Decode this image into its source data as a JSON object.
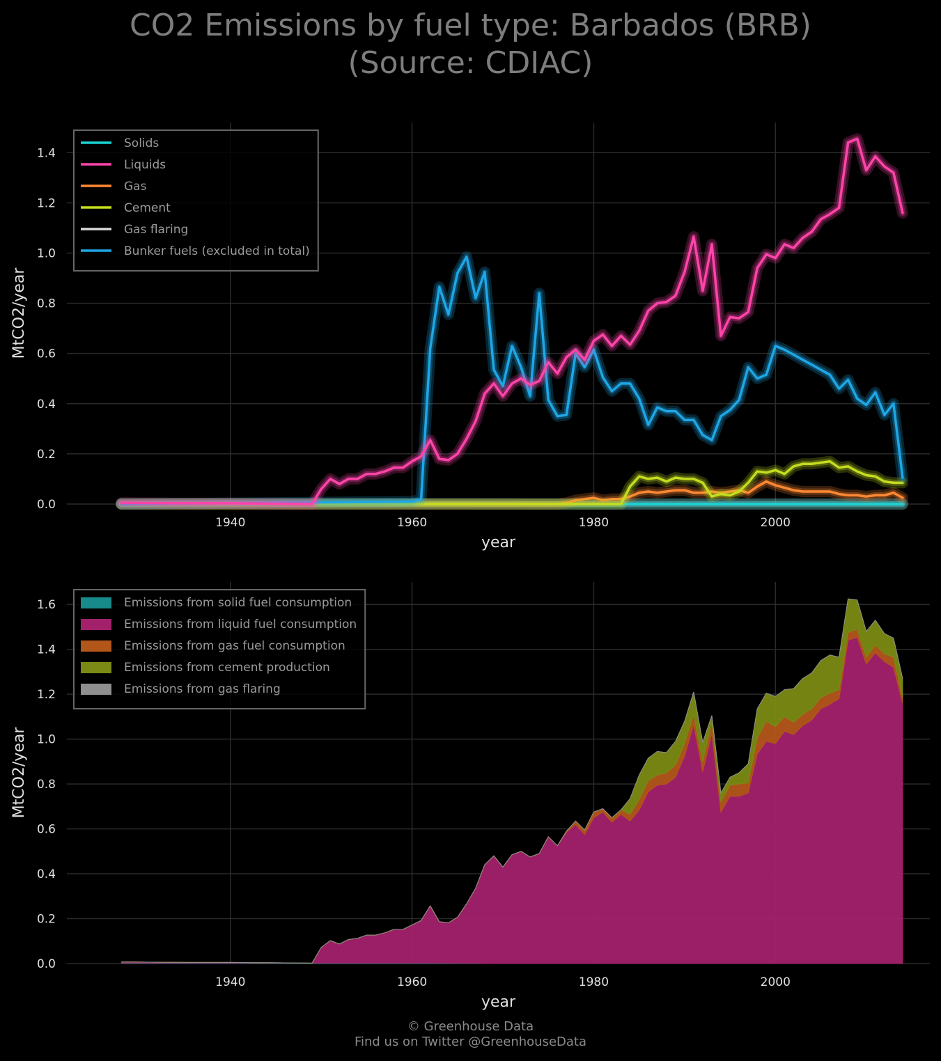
{
  "title": {
    "line1": "CO2 Emissions by fuel type: Barbados (BRB)",
    "line2": "(Source: CDIAC)"
  },
  "footer": {
    "line1": "© Greenhouse Data",
    "line2": "Find us on Twitter @GreenhouseData"
  },
  "chart_data": [
    {
      "type": "line",
      "xlabel": "year",
      "ylabel": "MtCO2/year",
      "xlim": [
        1922,
        2017
      ],
      "ylim": [
        0,
        1.52
      ],
      "xticks": [
        1940,
        1960,
        1980,
        2000
      ],
      "yticks": [
        0.0,
        0.2,
        0.4,
        0.6,
        0.8,
        1.0,
        1.2,
        1.4
      ],
      "grid": true,
      "legend_position": "top-left",
      "series": [
        {
          "name": "Solids",
          "color": "#1ad1d1",
          "x": [
            1928,
            1960,
            1970,
            1980,
            1990,
            2000,
            2010,
            2014
          ],
          "y": [
            0.002,
            0.002,
            0.001,
            0.0,
            0.0,
            0.0,
            0.0,
            0.0
          ]
        },
        {
          "name": "Liquids",
          "color": "#ff44aa",
          "x": [
            1928,
            1935,
            1940,
            1949,
            1950,
            1951,
            1952,
            1953,
            1954,
            1955,
            1956,
            1957,
            1958,
            1959,
            1960,
            1961,
            1962,
            1963,
            1964,
            1965,
            1966,
            1967,
            1968,
            1969,
            1970,
            1971,
            1972,
            1973,
            1974,
            1975,
            1976,
            1977,
            1978,
            1979,
            1980,
            1981,
            1982,
            1983,
            1984,
            1985,
            1986,
            1987,
            1988,
            1989,
            1990,
            1991,
            1992,
            1993,
            1994,
            1995,
            1996,
            1997,
            1998,
            1999,
            2000,
            2001,
            2002,
            2003,
            2004,
            2005,
            2006,
            2007,
            2008,
            2009,
            2010,
            2011,
            2012,
            2013,
            2014
          ],
          "y": [
            0.005,
            0.003,
            0.003,
            0.0,
            0.06,
            0.1,
            0.08,
            0.1,
            0.1,
            0.12,
            0.12,
            0.13,
            0.145,
            0.145,
            0.17,
            0.19,
            0.255,
            0.18,
            0.175,
            0.2,
            0.26,
            0.33,
            0.44,
            0.48,
            0.43,
            0.48,
            0.5,
            0.475,
            0.49,
            0.565,
            0.52,
            0.585,
            0.615,
            0.575,
            0.65,
            0.675,
            0.63,
            0.67,
            0.635,
            0.69,
            0.77,
            0.8,
            0.805,
            0.83,
            0.925,
            1.065,
            0.85,
            1.035,
            0.67,
            0.745,
            0.74,
            0.765,
            0.94,
            0.995,
            0.98,
            1.035,
            1.02,
            1.06,
            1.085,
            1.135,
            1.155,
            1.18,
            1.44,
            1.455,
            1.33,
            1.385,
            1.345,
            1.32,
            1.16
          ]
        },
        {
          "name": "Gas",
          "color": "#ff8833",
          "x": [
            1928,
            1976,
            1977,
            1978,
            1979,
            1980,
            1981,
            1982,
            1983,
            1984,
            1985,
            1986,
            1987,
            1988,
            1989,
            1990,
            1991,
            1992,
            1993,
            1994,
            1995,
            1996,
            1997,
            1998,
            1999,
            2000,
            2001,
            2002,
            2003,
            2004,
            2005,
            2006,
            2007,
            2008,
            2009,
            2010,
            2011,
            2012,
            2013,
            2014
          ],
          "y": [
            0.0,
            0.0,
            0.005,
            0.015,
            0.02,
            0.025,
            0.015,
            0.02,
            0.02,
            0.03,
            0.045,
            0.05,
            0.045,
            0.05,
            0.055,
            0.055,
            0.045,
            0.045,
            0.05,
            0.045,
            0.05,
            0.055,
            0.045,
            0.07,
            0.09,
            0.075,
            0.065,
            0.055,
            0.05,
            0.05,
            0.05,
            0.05,
            0.04,
            0.035,
            0.035,
            0.03,
            0.035,
            0.035,
            0.045,
            0.025
          ]
        },
        {
          "name": "Cement",
          "color": "#c5dd1f",
          "x": [
            1928,
            1983,
            1984,
            1985,
            1986,
            1987,
            1988,
            1989,
            1990,
            1991,
            1992,
            1993,
            1994,
            1995,
            1996,
            1997,
            1998,
            1999,
            2000,
            2001,
            2002,
            2003,
            2004,
            2005,
            2006,
            2007,
            2008,
            2009,
            2010,
            2011,
            2012,
            2013,
            2014
          ],
          "y": [
            0.0,
            0.0,
            0.07,
            0.11,
            0.1,
            0.105,
            0.09,
            0.105,
            0.1,
            0.1,
            0.085,
            0.03,
            0.04,
            0.035,
            0.05,
            0.085,
            0.13,
            0.125,
            0.135,
            0.12,
            0.15,
            0.16,
            0.16,
            0.165,
            0.17,
            0.145,
            0.15,
            0.13,
            0.115,
            0.11,
            0.09,
            0.085,
            0.085
          ]
        },
        {
          "name": "Gas flaring",
          "color": "#d9d9d9",
          "x": [
            1928,
            2014
          ],
          "y": [
            0.0,
            0.0
          ]
        },
        {
          "name": "Bunker fuels (excluded in total)",
          "color": "#1ea7e6",
          "x": [
            1928,
            1960,
            1961,
            1962,
            1963,
            1964,
            1965,
            1966,
            1967,
            1968,
            1969,
            1970,
            1971,
            1972,
            1973,
            1974,
            1975,
            1976,
            1977,
            1978,
            1979,
            1980,
            1981,
            1982,
            1983,
            1984,
            1985,
            1986,
            1987,
            1988,
            1989,
            1990,
            1991,
            1992,
            1993,
            1994,
            1995,
            1996,
            1997,
            1998,
            1999,
            2000,
            2001,
            2002,
            2003,
            2004,
            2005,
            2006,
            2007,
            2008,
            2009,
            2010,
            2011,
            2012,
            2013,
            2014
          ],
          "y": [
            0.0,
            0.01,
            0.02,
            0.62,
            0.865,
            0.755,
            0.92,
            0.985,
            0.82,
            0.925,
            0.535,
            0.47,
            0.63,
            0.545,
            0.43,
            0.84,
            0.415,
            0.35,
            0.355,
            0.6,
            0.545,
            0.615,
            0.505,
            0.45,
            0.48,
            0.48,
            0.42,
            0.315,
            0.385,
            0.37,
            0.37,
            0.335,
            0.335,
            0.275,
            0.255,
            0.35,
            0.375,
            0.415,
            0.545,
            0.5,
            0.515,
            0.63,
            0.615,
            0.595,
            0.575,
            0.555,
            0.535,
            0.515,
            0.46,
            0.495,
            0.42,
            0.395,
            0.445,
            0.355,
            0.4,
            0.105
          ]
        }
      ]
    },
    {
      "type": "area",
      "xlabel": "year",
      "ylabel": "MtCO2/year",
      "xlim": [
        1922,
        2017
      ],
      "ylim": [
        0,
        1.7
      ],
      "xticks": [
        1940,
        1960,
        1980,
        2000
      ],
      "yticks": [
        0.0,
        0.2,
        0.4,
        0.6,
        0.8,
        1.0,
        1.2,
        1.4,
        1.6
      ],
      "grid": true,
      "stacked": true,
      "legend_position": "top-left",
      "series": [
        {
          "name": "Emissions from solid fuel consumption",
          "color": "#178a8a",
          "x": [
            1928,
            1950,
            1960,
            1967,
            1968,
            2014
          ],
          "y": [
            0.002,
            0.002,
            0.002,
            0.001,
            0.0,
            0.0
          ]
        },
        {
          "name": "Emissions from liquid fuel consumption",
          "color": "#a3216b",
          "x": [
            1928,
            1935,
            1940,
            1949,
            1950,
            1951,
            1952,
            1953,
            1954,
            1955,
            1956,
            1957,
            1958,
            1959,
            1960,
            1961,
            1962,
            1963,
            1964,
            1965,
            1966,
            1967,
            1968,
            1969,
            1970,
            1971,
            1972,
            1973,
            1974,
            1975,
            1976,
            1977,
            1978,
            1979,
            1980,
            1981,
            1982,
            1983,
            1984,
            1985,
            1986,
            1987,
            1988,
            1989,
            1990,
            1991,
            1992,
            1993,
            1994,
            1995,
            1996,
            1997,
            1998,
            1999,
            2000,
            2001,
            2002,
            2003,
            2004,
            2005,
            2006,
            2007,
            2008,
            2009,
            2010,
            2011,
            2012,
            2013,
            2014
          ],
          "y": [
            0.005,
            0.003,
            0.003,
            0.0,
            0.07,
            0.1,
            0.085,
            0.105,
            0.11,
            0.125,
            0.125,
            0.135,
            0.15,
            0.15,
            0.17,
            0.19,
            0.255,
            0.185,
            0.18,
            0.205,
            0.265,
            0.335,
            0.44,
            0.48,
            0.43,
            0.485,
            0.5,
            0.475,
            0.49,
            0.565,
            0.525,
            0.585,
            0.62,
            0.575,
            0.65,
            0.675,
            0.63,
            0.665,
            0.635,
            0.685,
            0.765,
            0.795,
            0.8,
            0.83,
            0.925,
            1.065,
            0.855,
            1.025,
            0.675,
            0.745,
            0.745,
            0.76,
            0.935,
            0.99,
            0.98,
            1.035,
            1.02,
            1.06,
            1.085,
            1.135,
            1.155,
            1.18,
            1.44,
            1.455,
            1.335,
            1.385,
            1.345,
            1.32,
            1.16
          ]
        },
        {
          "name": "Emissions from gas fuel consumption",
          "color": "#b3561a",
          "x": [
            1928,
            1976,
            1977,
            1978,
            1979,
            1980,
            1981,
            1982,
            1983,
            1984,
            1985,
            1986,
            1987,
            1988,
            1989,
            1990,
            1991,
            1992,
            1993,
            1994,
            1995,
            1996,
            1997,
            1998,
            1999,
            2000,
            2001,
            2002,
            2003,
            2004,
            2005,
            2006,
            2007,
            2008,
            2009,
            2010,
            2011,
            2012,
            2013,
            2014
          ],
          "y": [
            0.0,
            0.0,
            0.005,
            0.015,
            0.02,
            0.025,
            0.015,
            0.02,
            0.02,
            0.03,
            0.045,
            0.05,
            0.045,
            0.05,
            0.055,
            0.055,
            0.045,
            0.045,
            0.05,
            0.045,
            0.05,
            0.055,
            0.045,
            0.07,
            0.09,
            0.075,
            0.065,
            0.055,
            0.05,
            0.05,
            0.05,
            0.05,
            0.04,
            0.035,
            0.035,
            0.03,
            0.035,
            0.035,
            0.045,
            0.025
          ]
        },
        {
          "name": "Emissions from cement production",
          "color": "#7b8a14",
          "x": [
            1928,
            1983,
            1984,
            1985,
            1986,
            1987,
            1988,
            1989,
            1990,
            1991,
            1992,
            1993,
            1994,
            1995,
            1996,
            1997,
            1998,
            1999,
            2000,
            2001,
            2002,
            2003,
            2004,
            2005,
            2006,
            2007,
            2008,
            2009,
            2010,
            2011,
            2012,
            2013,
            2014
          ],
          "y": [
            0.0,
            0.0,
            0.07,
            0.11,
            0.1,
            0.105,
            0.09,
            0.105,
            0.1,
            0.1,
            0.085,
            0.03,
            0.04,
            0.035,
            0.05,
            0.085,
            0.13,
            0.125,
            0.135,
            0.12,
            0.15,
            0.16,
            0.16,
            0.165,
            0.17,
            0.145,
            0.15,
            0.13,
            0.115,
            0.11,
            0.09,
            0.085,
            0.085
          ]
        },
        {
          "name": "Emissions from gas flaring",
          "color": "#8f8f8f",
          "x": [
            1928,
            2014
          ],
          "y": [
            0.0,
            0.0
          ]
        }
      ]
    }
  ]
}
